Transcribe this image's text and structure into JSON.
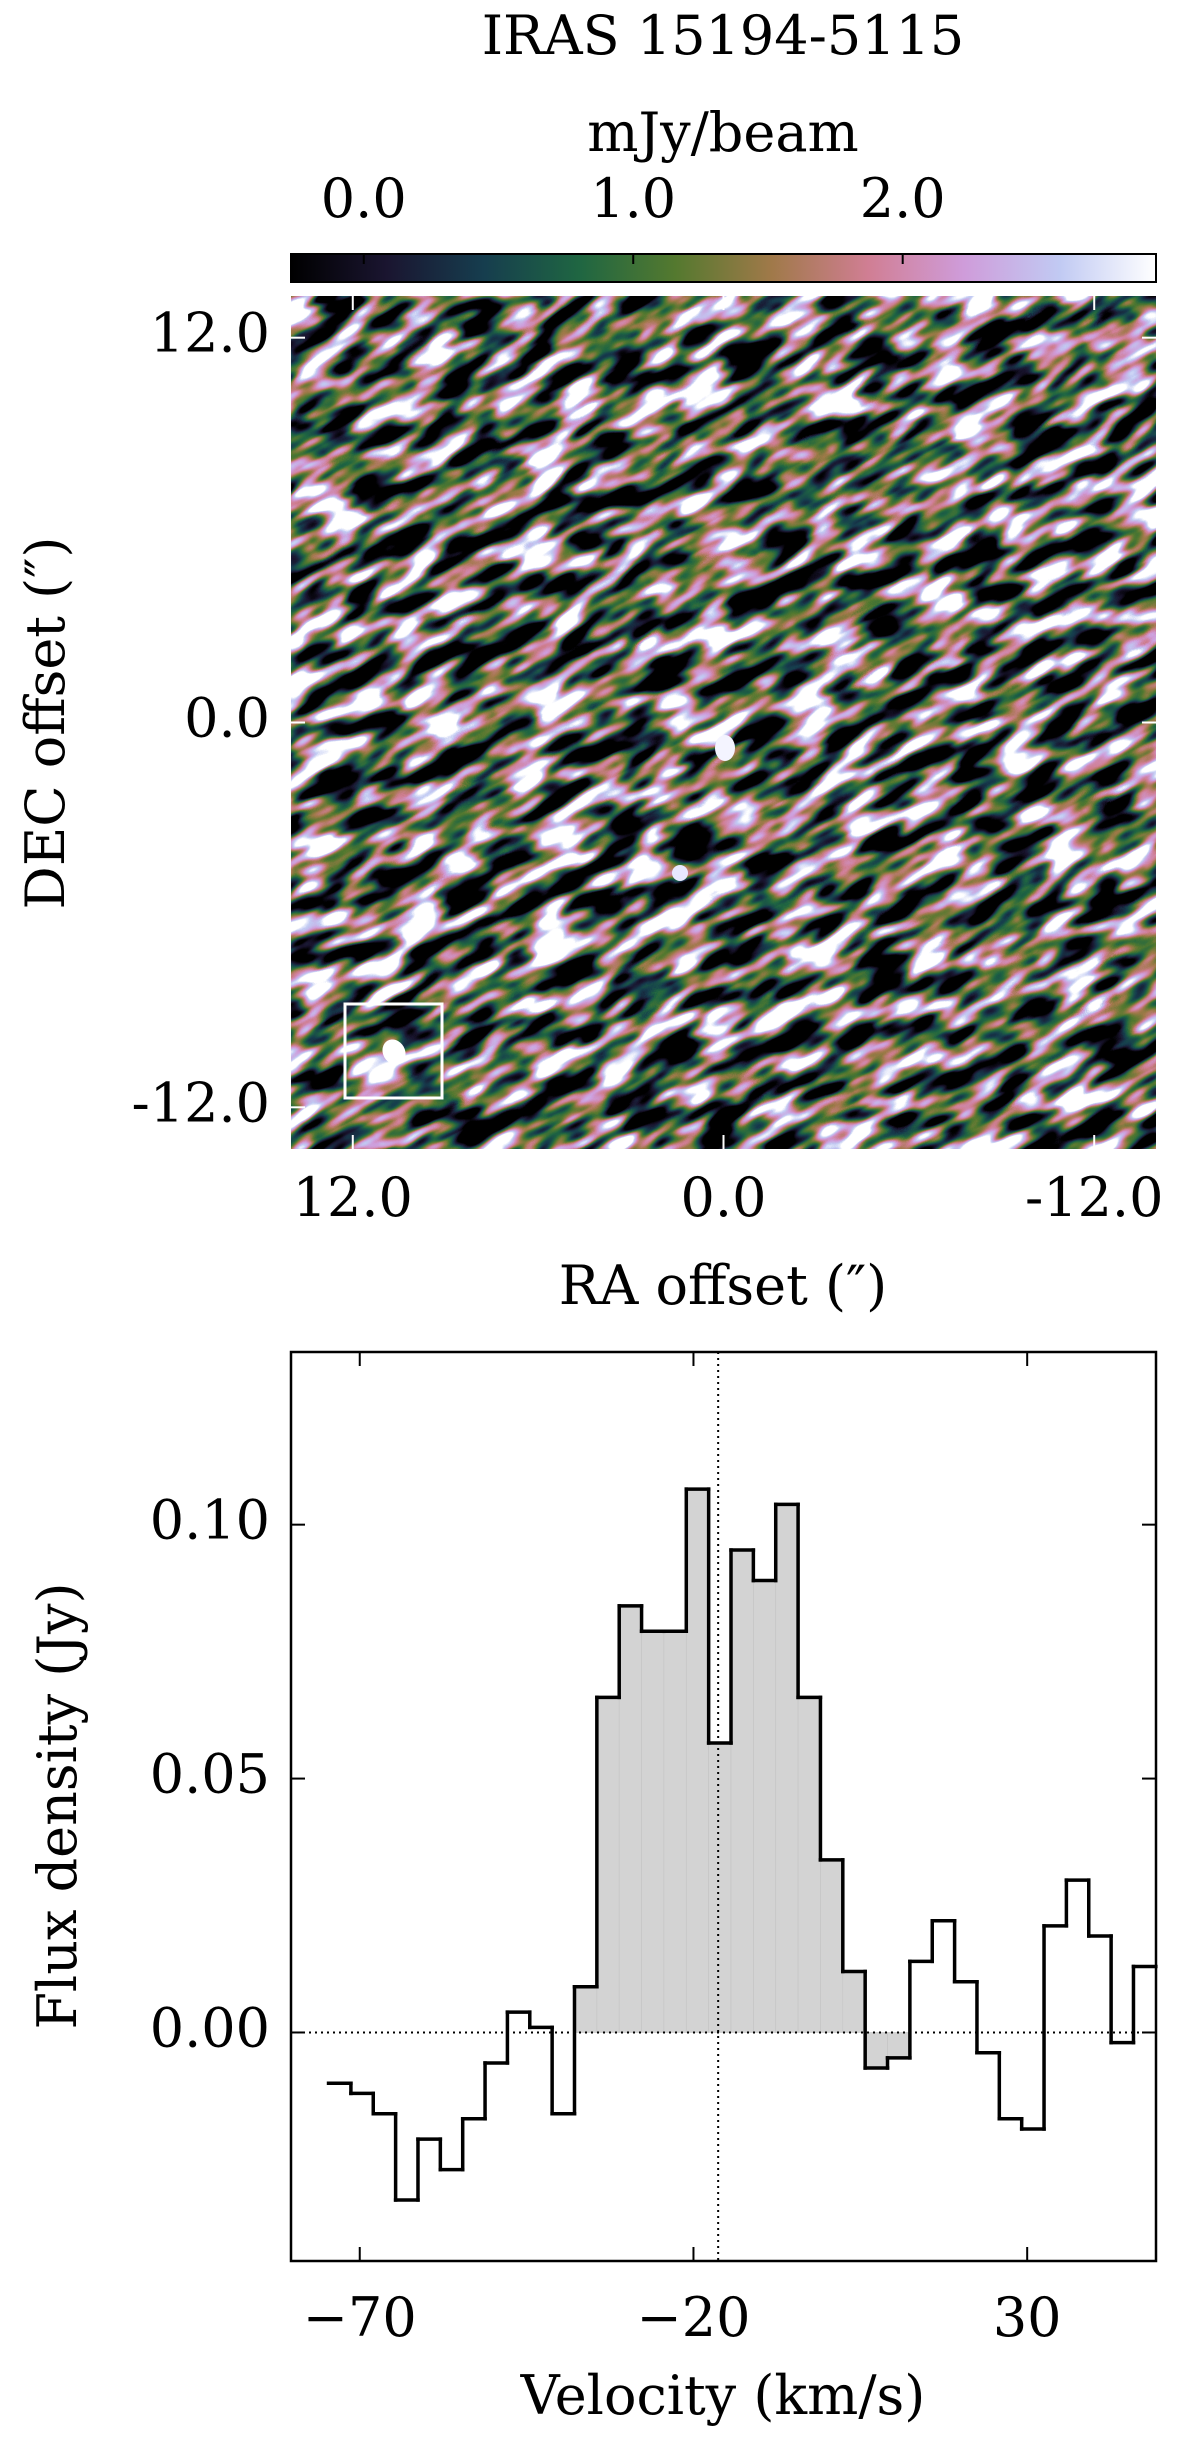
{
  "chart_data": [
    {
      "type": "image",
      "title": "IRAS 15194-5115",
      "colorbar": {
        "label": "mJy/beam",
        "lim": [
          -0.27,
          2.94
        ],
        "ticks": [
          {
            "value": 0,
            "label": "0.0"
          },
          {
            "value": 1,
            "label": "1.0"
          },
          {
            "value": 2,
            "label": "2.0"
          }
        ],
        "colormap": [
          "#000000",
          "#1a1530",
          "#163d4e",
          "#1f6642",
          "#54792f",
          "#a07949",
          "#d07e93",
          "#cf9cda",
          "#c1caf3",
          "#ffffff"
        ]
      },
      "xlabel": "RA offset (″)",
      "ylabel": "DEC offset (″)",
      "xlim": [
        14,
        -14
      ],
      "ylim": [
        -13.3,
        13.3
      ],
      "xticks": [
        {
          "value": 12,
          "label": "12.0"
        },
        {
          "value": 0,
          "label": "0.0"
        },
        {
          "value": -12,
          "label": "-12.0"
        }
      ],
      "yticks": [
        {
          "value": 12,
          "label": "12.0"
        },
        {
          "value": 0,
          "label": "0.0"
        },
        {
          "value": -12,
          "label": "-12.0"
        }
      ]
    },
    {
      "type": "step",
      "xlabel": "Velocity (km/s)",
      "ylabel": "Flux density (Jy)",
      "x": [
        -73.0,
        -69.65,
        -66.3,
        -62.95,
        -59.6,
        -56.25,
        -52.9,
        -49.55,
        -46.2,
        -42.85,
        -39.5,
        -36.15,
        -32.8,
        -29.45,
        -26.1,
        -22.75,
        -19.4,
        -16.05,
        -12.7,
        -9.35,
        -6.0,
        -2.65,
        0.7,
        4.05,
        7.4,
        10.75,
        14.1,
        17.45,
        20.8,
        24.15,
        27.5,
        30.85,
        34.2,
        37.55,
        40.9,
        44.25,
        47.6
      ],
      "values": [
        -0.01,
        -0.012,
        -0.016,
        -0.033,
        -0.021,
        -0.027,
        -0.017,
        -0.006,
        0.004,
        0.001,
        -0.016,
        0.009,
        0.066,
        0.084,
        0.079,
        0.079,
        0.107,
        0.057,
        0.095,
        0.089,
        0.104,
        0.066,
        0.034,
        0.012,
        -0.007,
        -0.005,
        0.014,
        0.022,
        0.01,
        -0.004,
        -0.017,
        -0.019,
        0.021,
        0.03,
        0.019,
        -0.002,
        0.013
      ],
      "color": "#000000",
      "fill_color": "#d3d3d3",
      "fill_range": [
        -37.8,
        12.4
      ],
      "vline": -16.3,
      "hline": 0,
      "xlim": [
        -80.3,
        49.3
      ],
      "ylim": [
        -0.045,
        0.134
      ],
      "xticks": [
        {
          "value": -70,
          "label": "−70"
        },
        {
          "value": -20,
          "label": "−20"
        },
        {
          "value": 30,
          "label": "30"
        }
      ],
      "yticks": [
        {
          "value": 0,
          "label": "0.00"
        },
        {
          "value": 0.05,
          "label": "0.05"
        },
        {
          "value": 0.1,
          "label": "0.10"
        }
      ]
    }
  ]
}
